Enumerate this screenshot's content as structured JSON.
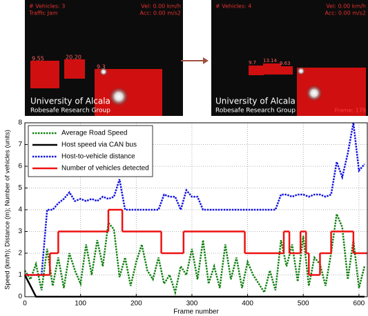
{
  "images": [
    {
      "vehicles": "# Vehicles: 3",
      "status": "Traffic Jam",
      "vel": "Vel:  0.00 km/h",
      "acc": "Acc:  0.00 m/s2",
      "university": "University of Alcala",
      "group": "Robesafe Research Group",
      "distances": [
        "9.55",
        "20.20",
        "9.3"
      ]
    },
    {
      "vehicles": "# Vehicles: 4",
      "vel": "Vel:  0.00 km/h",
      "acc": "Acc:  0.00 m/s2",
      "university": "University of Alcala",
      "group": "Robesafe Research Group",
      "frame": "Frame: 179",
      "distances": [
        "9.7",
        "13.14",
        "9.63"
      ]
    }
  ],
  "chart_data": {
    "type": "line",
    "xlabel": "Frame number",
    "ylabel": "Speed (km/h); Distance (m); Number of vehicles (units)",
    "x": [
      0,
      10,
      20,
      30,
      40,
      50,
      60,
      70,
      80,
      90,
      100,
      110,
      120,
      130,
      140,
      150,
      160,
      170,
      180,
      190,
      200,
      210,
      220,
      230,
      240,
      250,
      260,
      270,
      280,
      290,
      300,
      310,
      320,
      330,
      340,
      350,
      360,
      370,
      380,
      390,
      400,
      410,
      420,
      430,
      440,
      450,
      460,
      470,
      480,
      490,
      500,
      510,
      520,
      530,
      540,
      550,
      560,
      570,
      580,
      590,
      600,
      610
    ],
    "xlim": [
      0,
      615
    ],
    "xticks": [
      0,
      100,
      200,
      300,
      400,
      500,
      600
    ],
    "ylim": [
      0,
      8
    ],
    "yticks": [
      0,
      1,
      2,
      3,
      4,
      5,
      6,
      7,
      8
    ],
    "grid": true,
    "legend": "upper left",
    "series": [
      {
        "name": "Average Road Speed",
        "color": "#108010",
        "style": "dotted",
        "values": [
          1.2,
          0.8,
          1.5,
          0.3,
          2.2,
          0.5,
          1.8,
          0.4,
          2.0,
          1.2,
          0.6,
          2.4,
          1.0,
          2.6,
          1.4,
          3.4,
          3.1,
          0.9,
          1.8,
          0.5,
          1.6,
          2.4,
          1.2,
          0.8,
          1.8,
          0.6,
          1.0,
          0.2,
          1.4,
          1.0,
          2.2,
          0.8,
          2.6,
          0.6,
          1.4,
          0.4,
          2.4,
          0.8,
          1.8,
          0.4,
          1.6,
          1.0,
          0.6,
          0.2,
          1.2,
          0.3,
          2.6,
          1.4,
          2.4,
          0.7,
          2.8,
          0.5,
          1.8,
          1.5,
          0.5,
          2.0,
          3.8,
          3.2,
          0.8,
          2.6,
          0.4,
          1.4
        ]
      },
      {
        "name": "Host speed via CAN bus",
        "color": "#000000",
        "style": "solid",
        "values": [
          1,
          0.5,
          0,
          0,
          0,
          0,
          0,
          0,
          0,
          0,
          0,
          0,
          0,
          0,
          0,
          0,
          0,
          0,
          0,
          0,
          0,
          0,
          0,
          0,
          0,
          0,
          0,
          0,
          0,
          0,
          0,
          0,
          0,
          0,
          0,
          0,
          0,
          0,
          0,
          0,
          0,
          0,
          0,
          0,
          0,
          0,
          0,
          0,
          0,
          0,
          0,
          0,
          0,
          0,
          0,
          0,
          0,
          0,
          0,
          0,
          0,
          0
        ]
      },
      {
        "name": "Host-to-vehicle distance",
        "color": "#1010e0",
        "style": "dotted",
        "values": [
          1,
          1,
          1,
          1,
          4,
          4,
          4.3,
          4.5,
          4.8,
          4.4,
          4.5,
          4.4,
          4.5,
          4.4,
          4.6,
          4.5,
          4.6,
          5.4,
          4.0,
          4.0,
          4.0,
          4.0,
          4.0,
          4.0,
          4.0,
          4.7,
          4.6,
          4.6,
          4.0,
          4.9,
          4.6,
          4.6,
          4.0,
          4.0,
          4.0,
          4.0,
          4.0,
          4.0,
          4.0,
          4.0,
          4.0,
          4.0,
          4.0,
          4.0,
          4.0,
          4.0,
          4.7,
          4.7,
          4.6,
          4.7,
          4.7,
          4.6,
          4.7,
          4.7,
          4.6,
          4.7,
          6.2,
          5.5,
          6.6,
          8.0,
          5.8,
          6.1
        ]
      },
      {
        "name": "Number of vehicles detected",
        "color": "#ee1111",
        "style": "step",
        "x": [
          0,
          45,
          60,
          150,
          175,
          245,
          285,
          395,
          465,
          475,
          495,
          505,
          510,
          530,
          550,
          590,
          615
        ],
        "values": [
          1,
          2,
          3,
          4,
          3,
          2,
          3,
          2,
          3,
          2,
          3,
          2,
          1,
          2,
          3,
          2,
          2
        ]
      }
    ]
  }
}
